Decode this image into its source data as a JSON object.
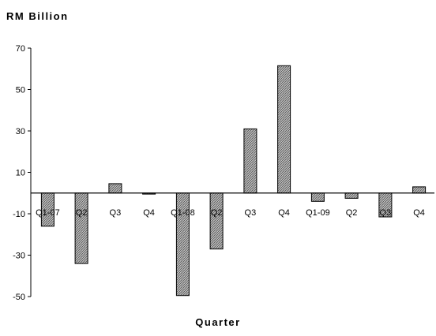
{
  "chart_data": {
    "type": "bar",
    "ylabel": "RM Billion",
    "xlabel": "Quarter",
    "categories": [
      "Q1-07",
      "Q2",
      "Q3",
      "Q4",
      "Q1-08",
      "Q2",
      "Q3",
      "Q4",
      "Q1-09",
      "Q2",
      "Q3",
      "Q4"
    ],
    "values": [
      -16,
      -34,
      4.5,
      -0.5,
      -49.5,
      -27,
      31,
      61.5,
      -4,
      -2.5,
      -11.5,
      3
    ],
    "ylim": [
      -50,
      70
    ],
    "yticks": [
      -50,
      -30,
      -10,
      10,
      30,
      50,
      70
    ],
    "grid": false,
    "bar_color": "#9a9a9a"
  }
}
